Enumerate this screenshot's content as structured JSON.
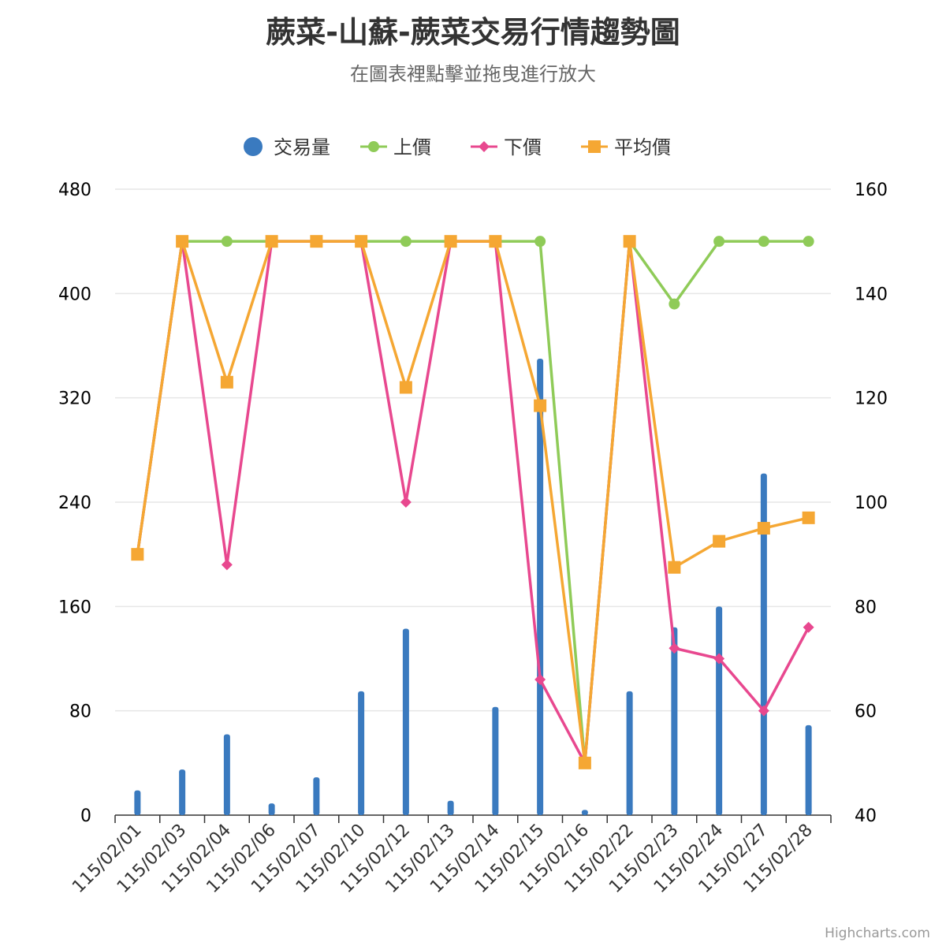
{
  "chart_data": {
    "type": "bar",
    "title": "蕨菜-山蘇-蕨菜交易行情趨勢圖",
    "subtitle": "在圖表裡點擊並拖曳進行放大",
    "credits": "Highcharts.com",
    "categories": [
      "115/02/01",
      "115/02/03",
      "115/02/04",
      "115/02/06",
      "115/02/07",
      "115/02/10",
      "115/02/12",
      "115/02/13",
      "115/02/14",
      "115/02/15",
      "115/02/16",
      "115/02/22",
      "115/02/23",
      "115/02/24",
      "115/02/27",
      "115/02/28"
    ],
    "left_axis": {
      "min": 0,
      "max": 480,
      "ticks": [
        0,
        80,
        160,
        240,
        320,
        400,
        480
      ]
    },
    "right_axis": {
      "min": 40,
      "max": 160,
      "ticks": [
        40,
        60,
        80,
        100,
        120,
        140,
        160
      ]
    },
    "grid": true,
    "legend_position": "top-center",
    "series": [
      {
        "name": "交易量",
        "type": "bar",
        "axis": "left",
        "color": "#3a7abf",
        "marker": "circle",
        "values": [
          19,
          35,
          62,
          9,
          29,
          95,
          143,
          11,
          83,
          350,
          4,
          95,
          144,
          160,
          262,
          69
        ]
      },
      {
        "name": "上價",
        "type": "line",
        "axis": "right",
        "color": "#8fcb58",
        "marker": "circle",
        "values": [
          90,
          150,
          150,
          150,
          150,
          150,
          150,
          150,
          150,
          150,
          50,
          150,
          138,
          150,
          150,
          150
        ]
      },
      {
        "name": "下價",
        "type": "line",
        "axis": "right",
        "color": "#e8488f",
        "marker": "diamond",
        "values": [
          90,
          150,
          88,
          150,
          150,
          150,
          100,
          150,
          150,
          66,
          50,
          150,
          72,
          70,
          60,
          76
        ]
      },
      {
        "name": "平均價",
        "type": "line",
        "axis": "right",
        "color": "#f5a733",
        "marker": "square",
        "values": [
          90,
          150,
          123,
          150,
          150,
          150,
          122,
          150,
          150,
          118.5,
          50,
          150,
          87.5,
          92.5,
          95,
          97
        ]
      }
    ]
  }
}
